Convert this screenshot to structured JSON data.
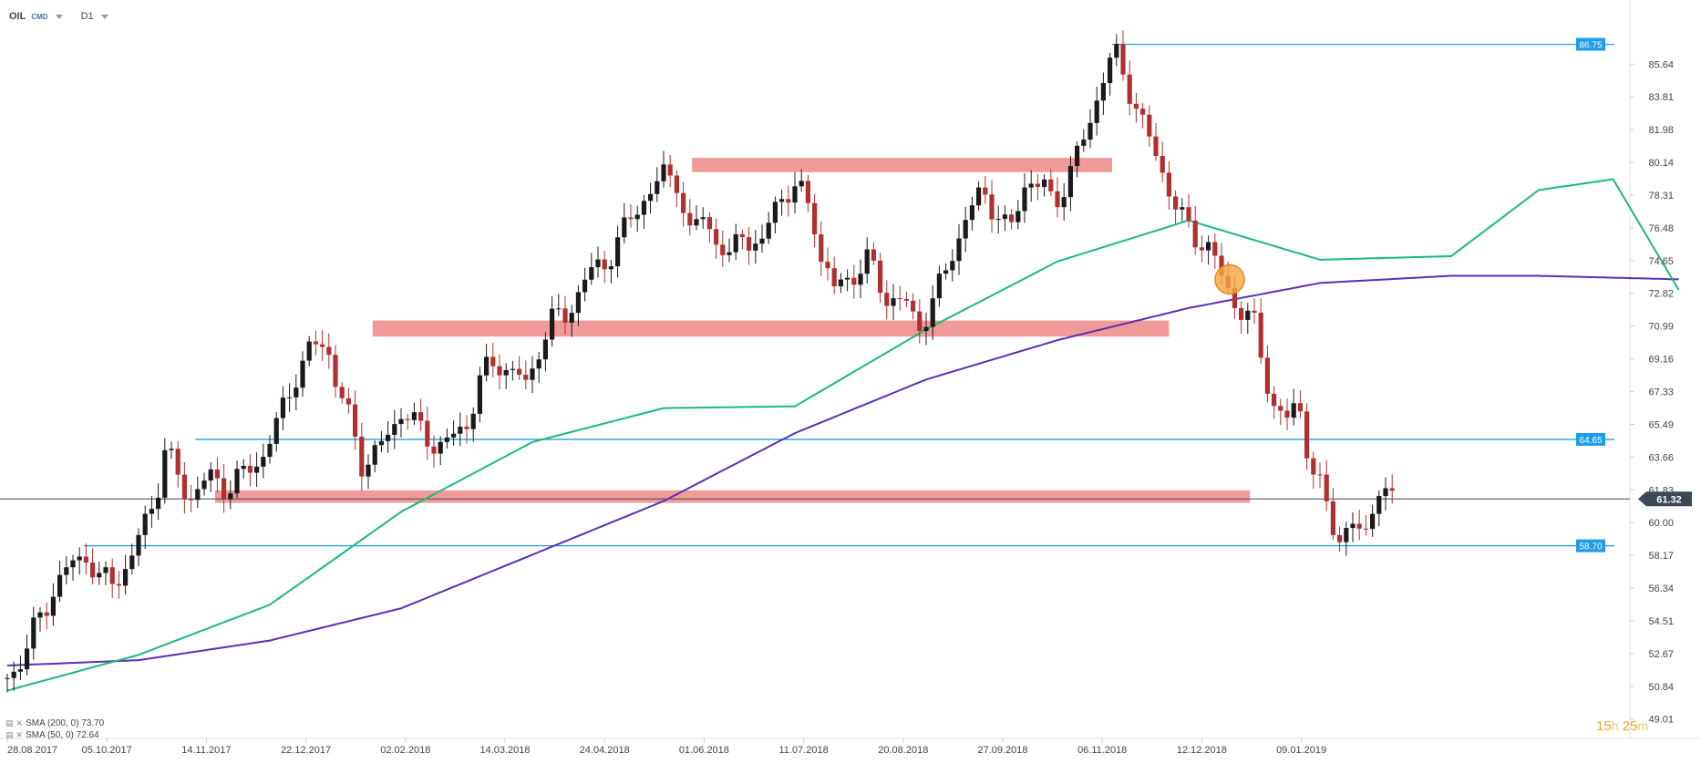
{
  "header": {
    "symbol": "OIL",
    "source": "CMD",
    "timeframe": "D1"
  },
  "legend": [
    {
      "text": "SMA (200, 0) 73.70",
      "color": "#5b2fb5"
    },
    {
      "text": "SMA (50, 0) 72.64",
      "color": "#1db87a"
    }
  ],
  "countdown": {
    "hours": "15",
    "hours_unit": "h",
    "minutes": "25",
    "minutes_unit": "m"
  },
  "colors": {
    "bull": "#1a1a1a",
    "bear": "#b03030",
    "sma200": "#5b2fb5",
    "sma50": "#1db87a",
    "level_line": "#1e9de8",
    "zone": "#ee8a86",
    "current": "#3c4654",
    "marker": "#f4a640"
  },
  "chart_data": {
    "type": "candlestick",
    "instrument": "OIL",
    "timeframe": "D1",
    "ylim": [
      49.4,
      87.8
    ],
    "y_ticks": [
      "85.64",
      "83.81",
      "81.98",
      "80.14",
      "78.31",
      "76.48",
      "74.65",
      "72.82",
      "70.99",
      "69.16",
      "67.33",
      "65.49",
      "63.66",
      "61.83",
      "60.00",
      "58.17",
      "56.34",
      "54.51",
      "52.67",
      "50.84",
      "49.01"
    ],
    "x_ticks": [
      "28.08.2017",
      "05.10.2017",
      "14.11.2017",
      "22.12.2017",
      "02.02.2018",
      "14.03.2018",
      "24.04.2018",
      "01.06.2018",
      "11.07.2018",
      "20.08.2018",
      "27.09.2018",
      "06.11.2018",
      "12.12.2018",
      "09.01.2019"
    ],
    "price_path": [
      [
        0,
        51.3
      ],
      [
        8,
        52.7
      ],
      [
        20,
        56.1
      ],
      [
        30,
        57.7
      ],
      [
        36,
        58.3
      ],
      [
        42,
        56.6
      ],
      [
        50,
        57.0
      ],
      [
        56,
        57.6
      ],
      [
        62,
        59.8
      ],
      [
        68,
        61.6
      ],
      [
        72,
        64.0
      ],
      [
        78,
        62.5
      ],
      [
        83,
        61.4
      ],
      [
        92,
        62.5
      ],
      [
        100,
        62.0
      ],
      [
        108,
        62.6
      ],
      [
        118,
        64.0
      ],
      [
        125,
        66.0
      ],
      [
        132,
        68.4
      ],
      [
        140,
        69.8
      ],
      [
        146,
        70.1
      ],
      [
        150,
        68.0
      ],
      [
        156,
        65.8
      ],
      [
        162,
        63.4
      ],
      [
        170,
        64.0
      ],
      [
        176,
        65.3
      ],
      [
        181,
        66.5
      ],
      [
        190,
        64.8
      ],
      [
        200,
        64.3
      ],
      [
        210,
        65.5
      ],
      [
        216,
        68.1
      ],
      [
        226,
        69.0
      ],
      [
        234,
        68.1
      ],
      [
        238,
        67.4
      ],
      [
        242,
        69.6
      ],
      [
        248,
        71.2
      ],
      [
        256,
        71.6
      ],
      [
        263,
        73.5
      ],
      [
        272,
        74.4
      ],
      [
        282,
        76.3
      ],
      [
        292,
        78.4
      ],
      [
        300,
        79.3
      ],
      [
        306,
        79.3
      ],
      [
        312,
        76.0
      ],
      [
        318,
        77.2
      ],
      [
        325,
        75.7
      ],
      [
        330,
        74.5
      ],
      [
        336,
        76.5
      ],
      [
        344,
        75.0
      ],
      [
        352,
        78.3
      ],
      [
        360,
        78.6
      ],
      [
        368,
        77.6
      ],
      [
        372,
        74.8
      ],
      [
        378,
        73.0
      ],
      [
        386,
        73.9
      ],
      [
        394,
        74.6
      ],
      [
        402,
        72.6
      ],
      [
        410,
        72.3
      ],
      [
        416,
        71.0
      ],
      [
        424,
        72.4
      ],
      [
        430,
        74.5
      ],
      [
        438,
        77.0
      ],
      [
        446,
        78.5
      ],
      [
        452,
        77.5
      ],
      [
        458,
        76.0
      ],
      [
        466,
        79.4
      ],
      [
        474,
        78.6
      ],
      [
        478,
        77.8
      ],
      [
        486,
        79.6
      ],
      [
        494,
        82.0
      ],
      [
        500,
        84.8
      ],
      [
        506,
        86.2
      ],
      [
        512,
        84.6
      ],
      [
        520,
        82.0
      ],
      [
        526,
        80.1
      ],
      [
        530,
        79.2
      ],
      [
        536,
        77.0
      ],
      [
        542,
        76.1
      ],
      [
        550,
        75.4
      ],
      [
        556,
        73.2
      ],
      [
        564,
        72.0
      ],
      [
        570,
        70.9
      ],
      [
        578,
        66.8
      ],
      [
        586,
        65.5
      ],
      [
        590,
        66.9
      ],
      [
        596,
        63.2
      ],
      [
        602,
        61.2
      ],
      [
        608,
        59.0
      ],
      [
        614,
        60.2
      ],
      [
        620,
        58.6
      ],
      [
        626,
        62.4
      ],
      [
        632,
        61.0
      ],
      [
        635,
        61.4
      ]
    ],
    "sma200_path": [
      [
        0,
        52.0
      ],
      [
        60,
        52.3
      ],
      [
        120,
        53.4
      ],
      [
        180,
        55.2
      ],
      [
        240,
        58.2
      ],
      [
        300,
        61.2
      ],
      [
        360,
        65.0
      ],
      [
        420,
        68.0
      ],
      [
        480,
        70.2
      ],
      [
        540,
        72.0
      ],
      [
        600,
        73.4
      ],
      [
        660,
        73.8
      ],
      [
        700,
        73.8
      ],
      [
        765,
        73.6
      ]
    ],
    "sma50_path": [
      [
        0,
        50.6
      ],
      [
        60,
        52.6
      ],
      [
        120,
        55.4
      ],
      [
        180,
        60.6
      ],
      [
        240,
        64.5
      ],
      [
        300,
        66.4
      ],
      [
        360,
        66.5
      ],
      [
        420,
        70.8
      ],
      [
        480,
        74.6
      ],
      [
        540,
        76.9
      ],
      [
        600,
        74.7
      ],
      [
        660,
        74.9
      ],
      [
        700,
        78.6
      ],
      [
        734,
        79.2
      ],
      [
        765,
        72.8
      ]
    ],
    "zones": [
      {
        "low": 79.6,
        "high": 80.4
      },
      {
        "low": 70.4,
        "high": 71.3
      },
      {
        "low": 61.1,
        "high": 61.8
      }
    ],
    "levels": [
      {
        "value": 86.75,
        "label": "86.75"
      },
      {
        "value": 64.65,
        "label": "64.65"
      },
      {
        "value": 58.7,
        "label": "58.70"
      }
    ],
    "current_price": {
      "value": 61.32,
      "label": "61.32"
    },
    "marker": {
      "value": 73.6
    },
    "indicators": [
      {
        "name": "SMA (200, 0)",
        "value": 73.7
      },
      {
        "name": "SMA (50, 0)",
        "value": 72.64
      }
    ]
  }
}
